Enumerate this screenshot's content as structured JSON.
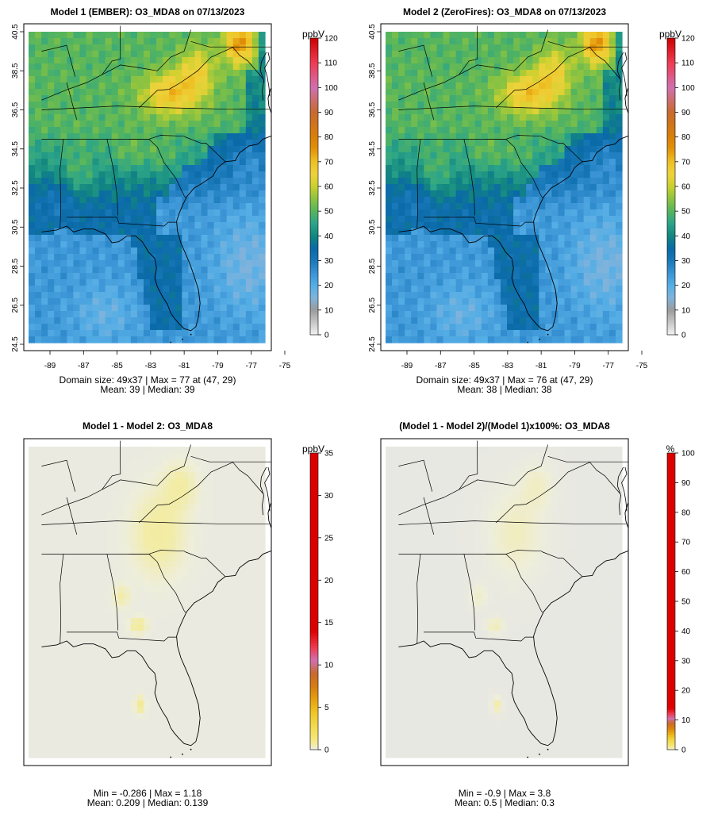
{
  "chart_data": [
    {
      "type": "heatmap",
      "title": "Model 1 (EMBER): O3_MDA8 on 07/13/2023",
      "x_ticks": [
        "-89",
        "-87",
        "-85",
        "-83",
        "-81",
        "-79",
        "-77",
        "-75"
      ],
      "y_ticks": [
        "24.5",
        "26.5",
        "28.5",
        "30.5",
        "32.5",
        "34.5",
        "36.5",
        "38.5",
        "40.5"
      ],
      "xlim": [
        -89.5,
        -74.5
      ],
      "ylim": [
        24.2,
        40.8
      ],
      "colorbar_label": "ppbV",
      "colorbar_ticks": [
        "0",
        "10",
        "20",
        "30",
        "40",
        "50",
        "60",
        "70",
        "80",
        "90",
        "100",
        "110",
        "120"
      ],
      "colorbar_range": [
        0,
        120
      ],
      "palette": "ozone",
      "domain_size": "49x37",
      "max": 77,
      "max_at": "(47, 29)",
      "mean": 39,
      "median": 39,
      "stats_line1": "Domain size: 49x37 | Max = 77 at (47, 29)",
      "stats_line2": "Mean: 39 |  Median: 39"
    },
    {
      "type": "heatmap",
      "title": "Model 2 (ZeroFires): O3_MDA8 on 07/13/2023",
      "x_ticks": [
        "-89",
        "-87",
        "-85",
        "-83",
        "-81",
        "-79",
        "-77",
        "-75"
      ],
      "y_ticks": [
        "24.5",
        "26.5",
        "28.5",
        "30.5",
        "32.5",
        "34.5",
        "36.5",
        "38.5",
        "40.5"
      ],
      "xlim": [
        -89.5,
        -74.5
      ],
      "ylim": [
        24.2,
        40.8
      ],
      "colorbar_label": "ppbV",
      "colorbar_ticks": [
        "0",
        "10",
        "20",
        "30",
        "40",
        "50",
        "60",
        "70",
        "80",
        "90",
        "100",
        "110",
        "120"
      ],
      "colorbar_range": [
        0,
        120
      ],
      "palette": "ozone",
      "domain_size": "49x37",
      "max": 76,
      "max_at": "(47, 29)",
      "mean": 38,
      "median": 38,
      "stats_line1": "Domain size: 49x37 | Max = 76 at (47, 29)",
      "stats_line2": "Mean: 38 |  Median: 38"
    },
    {
      "type": "heatmap",
      "title": "Model 1 - Model 2: O3_MDA8",
      "colorbar_label": "ppbV",
      "colorbar_ticks": [
        "0",
        "5",
        "10",
        "15",
        "20",
        "25",
        "30",
        "35"
      ],
      "colorbar_range": [
        0,
        35
      ],
      "palette": "diff",
      "min": -0.286,
      "max": 1.18,
      "mean": 0.209,
      "median": 0.139,
      "stats_line1": "Min = -0.286 | Max = 1.18",
      "stats_line2": "Mean: 0.209 |  Median: 0.139"
    },
    {
      "type": "heatmap",
      "title": "(Model 1 - Model 2)/(Model 1)x100%: O3_MDA8",
      "colorbar_label": "%",
      "colorbar_ticks": [
        "0",
        "10",
        "20",
        "30",
        "40",
        "50",
        "60",
        "70",
        "80",
        "90",
        "100"
      ],
      "colorbar_range": [
        0,
        100
      ],
      "palette": "diff",
      "min": -0.9,
      "max": 3.8,
      "mean": 0.5,
      "median": 0.3,
      "stats_line1": "Min = -0.9 | Max = 3.8",
      "stats_line2": "Mean: 0.5 |  Median: 0.3"
    }
  ],
  "palettes": {
    "ozone": [
      [
        0,
        "#f2f2f2"
      ],
      [
        10,
        "#9b9b9b"
      ],
      [
        15,
        "#7fb3dc"
      ],
      [
        20,
        "#55aee5"
      ],
      [
        25,
        "#3a93d4"
      ],
      [
        30,
        "#1878b8"
      ],
      [
        35,
        "#0a6aa7"
      ],
      [
        40,
        "#13877f"
      ],
      [
        45,
        "#2ba48a"
      ],
      [
        50,
        "#56b55d"
      ],
      [
        55,
        "#8cc341"
      ],
      [
        60,
        "#cbd02e"
      ],
      [
        65,
        "#eed23c"
      ],
      [
        70,
        "#eec023"
      ],
      [
        75,
        "#e2930a"
      ],
      [
        80,
        "#d97f08"
      ],
      [
        90,
        "#c76a2e"
      ],
      [
        100,
        "#d070b0"
      ],
      [
        110,
        "#ee3c52"
      ],
      [
        120,
        "#cc0000"
      ]
    ],
    "diff": [
      [
        0,
        "#e6e6e6"
      ],
      [
        0.2,
        "#eeeedb"
      ],
      [
        0.5,
        "#f2eca8"
      ],
      [
        1.5,
        "#f5e570"
      ],
      [
        3,
        "#f2d84a"
      ],
      [
        4.5,
        "#eec323"
      ],
      [
        6,
        "#e59e10"
      ],
      [
        7.5,
        "#d67c12"
      ],
      [
        9,
        "#c76a2e"
      ],
      [
        10.5,
        "#d070b0"
      ],
      [
        12,
        "#ee3c52"
      ],
      [
        14,
        "#dd0000"
      ]
    ],
    "land_line": "#000000",
    "diff_background": "#e6e6e6"
  }
}
